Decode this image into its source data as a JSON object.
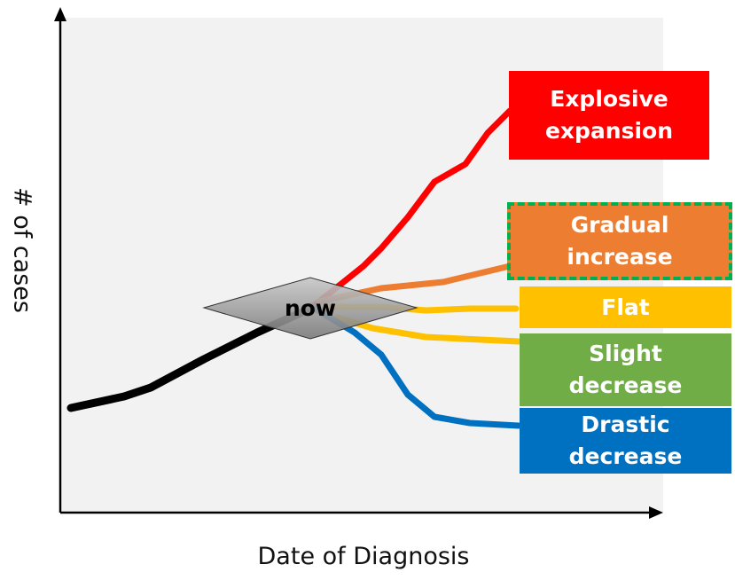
{
  "axes": {
    "x_label": "Date of Diagnosis",
    "y_label": "# of cases"
  },
  "marker": "now",
  "scenarios": [
    {
      "lines": [
        "Explosive",
        "expansion"
      ]
    },
    {
      "lines": [
        "Gradual",
        "increase"
      ]
    },
    {
      "lines": [
        "Flat"
      ]
    },
    {
      "lines": [
        "Slight",
        "decrease"
      ]
    },
    {
      "lines": [
        "Drastic",
        "decrease"
      ]
    }
  ]
}
